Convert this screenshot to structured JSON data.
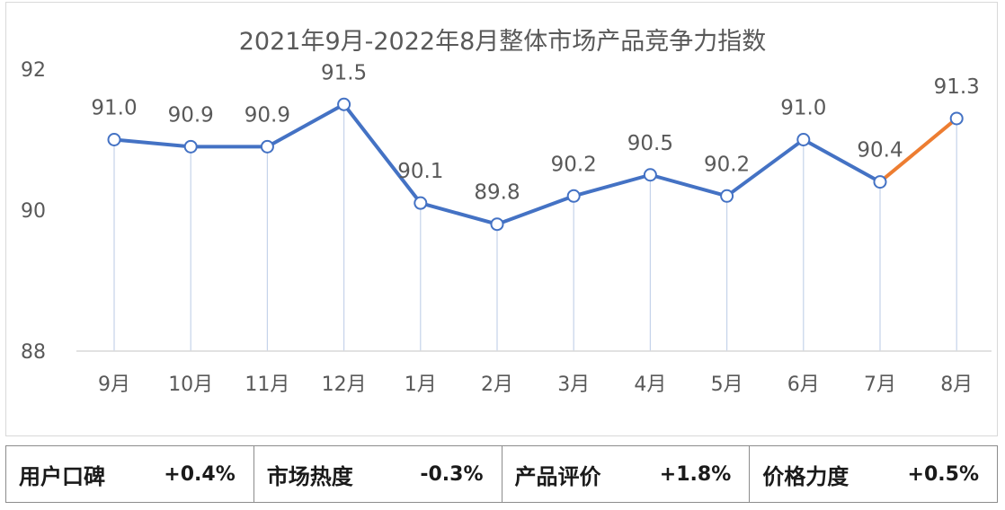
{
  "chart_data": {
    "type": "line",
    "title": "2021年9月-2022年8月整体市场产品竞争力指数",
    "categories": [
      "9月",
      "10月",
      "11月",
      "12月",
      "1月",
      "2月",
      "3月",
      "4月",
      "5月",
      "6月",
      "7月",
      "8月"
    ],
    "series": [
      {
        "values": [
          91.0,
          90.9,
          90.9,
          91.5,
          90.1,
          89.8,
          90.2,
          90.5,
          90.2,
          91.0,
          90.4,
          91.3
        ]
      }
    ],
    "data_labels": [
      "91.0",
      "90.9",
      "90.9",
      "91.5",
      "90.1",
      "89.8",
      "90.2",
      "90.5",
      "90.2",
      "91.0",
      "90.4",
      "91.3"
    ],
    "ylim": [
      88,
      92
    ],
    "yticks": [
      "88",
      "90",
      "92"
    ],
    "legend": "none",
    "grid": false,
    "colors": {
      "line": "#4472c4",
      "last_segment": "#ed7d31",
      "drop_line": "#c5d3ea",
      "axis": "#d9d9d9",
      "text": "#595959"
    }
  },
  "stats": [
    {
      "label": "用户口碑",
      "value": "+0.4%"
    },
    {
      "label": "市场热度",
      "value": "-0.3%"
    },
    {
      "label": "产品评价",
      "value": "+1.8%"
    },
    {
      "label": "价格力度",
      "value": "+0.5%"
    }
  ]
}
